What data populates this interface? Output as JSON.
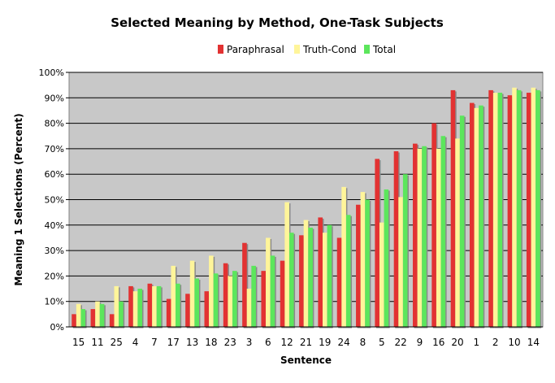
{
  "chart_data": {
    "type": "bar",
    "title": "Selected Meaning by Method, One-Task Subjects",
    "xlabel": "Sentence",
    "ylabel": "Meaning 1 Selections (Percent)",
    "ylim": [
      0,
      100
    ],
    "yticks": [
      "0%",
      "10%",
      "20%",
      "30%",
      "40%",
      "50%",
      "60%",
      "70%",
      "80%",
      "90%",
      "100%"
    ],
    "grid": true,
    "legend_position": "top",
    "categories": [
      "15",
      "11",
      "25",
      "4",
      "7",
      "17",
      "13",
      "18",
      "23",
      "3",
      "6",
      "12",
      "21",
      "19",
      "24",
      "8",
      "5",
      "22",
      "9",
      "16",
      "20",
      "1",
      "2",
      "10",
      "14"
    ],
    "series": [
      {
        "name": "Paraphrasal",
        "color": "#e23232",
        "values": [
          5,
          7,
          5,
          16,
          17,
          11,
          13,
          14,
          25,
          33,
          22,
          26,
          36,
          43,
          35,
          48,
          66,
          69,
          72,
          80,
          93,
          88,
          93,
          91,
          92
        ]
      },
      {
        "name": "Truth-Cond",
        "color": "#fff59a",
        "values": [
          9,
          10,
          16,
          14,
          16,
          24,
          26,
          28,
          20,
          15,
          35,
          49,
          42,
          37,
          55,
          53,
          41,
          51,
          70,
          70,
          74,
          86,
          92,
          94,
          94
        ]
      },
      {
        "name": "Total",
        "color": "#5ce65c",
        "values": [
          7,
          9,
          10,
          15,
          16,
          17,
          19,
          21,
          22,
          24,
          28,
          37,
          39,
          40,
          44,
          50,
          54,
          60,
          71,
          75,
          83,
          87,
          92,
          93,
          93
        ]
      }
    ]
  }
}
